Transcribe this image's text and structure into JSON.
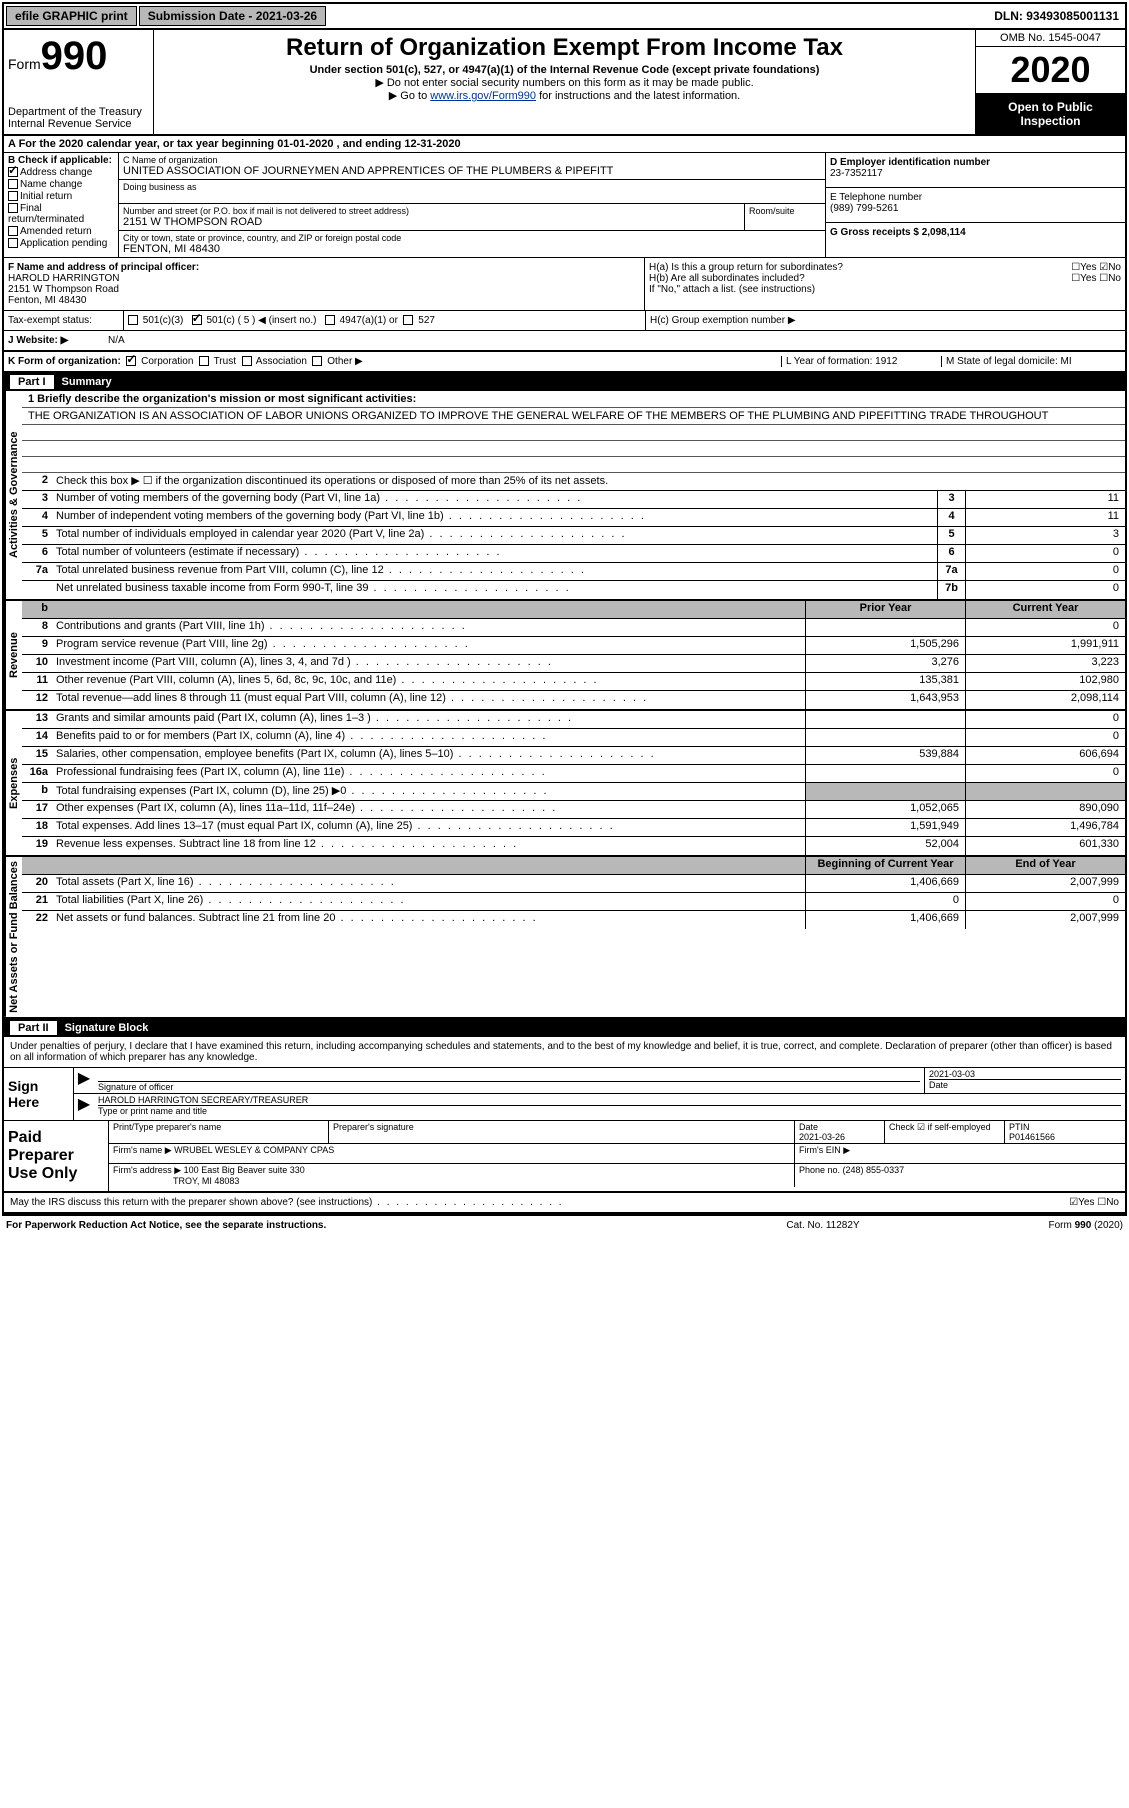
{
  "topbar": {
    "efile": "efile GRAPHIC print",
    "subdate_label": "Submission Date - 2021-03-26",
    "dln": "DLN: 93493085001131"
  },
  "header": {
    "form_prefix": "Form",
    "form_no": "990",
    "dept": "Department of the Treasury Internal Revenue Service",
    "title": "Return of Organization Exempt From Income Tax",
    "sub1": "Under section 501(c), 527, or 4947(a)(1) of the Internal Revenue Code (except private foundations)",
    "sub2a": "▶ Do not enter social security numbers on this form as it may be made public.",
    "sub2b_pre": "▶ Go to ",
    "sub2b_link": "www.irs.gov/Form990",
    "sub2b_post": " for instructions and the latest information.",
    "omb": "OMB No. 1545-0047",
    "year": "2020",
    "inspect": "Open to Public Inspection"
  },
  "taxyear": "A For the 2020 calendar year, or tax year beginning 01-01-2020    , and ending 12-31-2020",
  "checkb": {
    "label": "B Check if applicable:",
    "addr": "Address change",
    "name": "Name change",
    "initial": "Initial return",
    "final": "Final return/terminated",
    "amended": "Amended return",
    "app": "Application pending"
  },
  "entity": {
    "name_label": "C Name of organization",
    "name": "UNITED ASSOCIATION OF JOURNEYMEN AND APPRENTICES OF THE PLUMBERS & PIPEFITT",
    "dba_label": "Doing business as",
    "dba": "",
    "addr_label": "Number and street (or P.O. box if mail is not delivered to street address)",
    "room_label": "Room/suite",
    "addr": "2151 W THOMPSON ROAD",
    "city_label": "City or town, state or province, country, and ZIP or foreign postal code",
    "city": "FENTON, MI  48430",
    "ein_label": "D Employer identification number",
    "ein": "23-7352117",
    "tel_label": "E Telephone number",
    "tel": "(989) 799-5261",
    "gross_label": "G Gross receipts $ 2,098,114"
  },
  "officer": {
    "label": "F  Name and address of principal officer:",
    "name": "HAROLD HARRINGTON",
    "addr1": "2151 W Thompson Road",
    "addr2": "Fenton, MI  48430"
  },
  "groupH": {
    "ha": "H(a)  Is this a group return for subordinates?",
    "ha_ans": "☐Yes ☑No",
    "hb": "H(b)  Are all subordinates included?",
    "hb_ans": "☐Yes ☐No",
    "hb_note": "If \"No,\" attach a list. (see instructions)",
    "hc": "H(c)  Group exemption number ▶"
  },
  "status": {
    "label": "Tax-exempt status:",
    "c3": "501(c)(3)",
    "c": "501(c) ( 5 ) ◀ (insert no.)",
    "a1": "4947(a)(1) or",
    "527": "527"
  },
  "website": {
    "label": "J Website: ▶",
    "value": "N/A"
  },
  "korg": {
    "label": "K Form of organization:",
    "corp": "Corporation",
    "trust": "Trust",
    "assoc": "Association",
    "other": "Other ▶",
    "year_label": "L Year of formation: 1912",
    "state_label": "M State of legal domicile: MI"
  },
  "part1": {
    "num": "Part I",
    "title": "Summary"
  },
  "mission": {
    "line1_label": "1 Briefly describe the organization's mission or most significant activities:",
    "text": "THE ORGANIZATION IS AN ASSOCIATION OF LABOR UNIONS ORGANIZED TO IMPROVE THE GENERAL WELFARE OF THE MEMBERS OF THE PLUMBING AND PIPEFITTING TRADE THROUGHOUT"
  },
  "sections": {
    "gov": "Activities & Governance",
    "rev": "Revenue",
    "exp": "Expenses",
    "net": "Net Assets or Fund Balances"
  },
  "gov_lines": [
    {
      "num": "2",
      "desc": "Check this box ▶ ☐ if the organization discontinued its operations or disposed of more than 25% of its net assets."
    },
    {
      "num": "3",
      "desc": "Number of voting members of the governing body (Part VI, line 1a)",
      "box": "3",
      "val": "11"
    },
    {
      "num": "4",
      "desc": "Number of independent voting members of the governing body (Part VI, line 1b)",
      "box": "4",
      "val": "11"
    },
    {
      "num": "5",
      "desc": "Total number of individuals employed in calendar year 2020 (Part V, line 2a)",
      "box": "5",
      "val": "3"
    },
    {
      "num": "6",
      "desc": "Total number of volunteers (estimate if necessary)",
      "box": "6",
      "val": "0"
    },
    {
      "num": "7a",
      "desc": "Total unrelated business revenue from Part VIII, column (C), line 12",
      "box": "7a",
      "val": "0"
    },
    {
      "num": "",
      "desc": "Net unrelated business taxable income from Form 990-T, line 39",
      "box": "7b",
      "val": "0"
    }
  ],
  "colheaders": {
    "prior": "Prior Year",
    "current": "Current Year"
  },
  "rev_lines": [
    {
      "num": "8",
      "desc": "Contributions and grants (Part VIII, line 1h)",
      "prior": "",
      "curr": "0"
    },
    {
      "num": "9",
      "desc": "Program service revenue (Part VIII, line 2g)",
      "prior": "1,505,296",
      "curr": "1,991,911"
    },
    {
      "num": "10",
      "desc": "Investment income (Part VIII, column (A), lines 3, 4, and 7d )",
      "prior": "3,276",
      "curr": "3,223"
    },
    {
      "num": "11",
      "desc": "Other revenue (Part VIII, column (A), lines 5, 6d, 8c, 9c, 10c, and 11e)",
      "prior": "135,381",
      "curr": "102,980"
    },
    {
      "num": "12",
      "desc": "Total revenue—add lines 8 through 11 (must equal Part VIII, column (A), line 12)",
      "prior": "1,643,953",
      "curr": "2,098,114"
    }
  ],
  "exp_lines": [
    {
      "num": "13",
      "desc": "Grants and similar amounts paid (Part IX, column (A), lines 1–3 )",
      "prior": "",
      "curr": "0"
    },
    {
      "num": "14",
      "desc": "Benefits paid to or for members (Part IX, column (A), line 4)",
      "prior": "",
      "curr": "0"
    },
    {
      "num": "15",
      "desc": "Salaries, other compensation, employee benefits (Part IX, column (A), lines 5–10)",
      "prior": "539,884",
      "curr": "606,694"
    },
    {
      "num": "16a",
      "desc": "Professional fundraising fees (Part IX, column (A), line 11e)",
      "prior": "",
      "curr": "0"
    },
    {
      "num": "b",
      "desc": "Total fundraising expenses (Part IX, column (D), line 25) ▶0",
      "prior": "shaded",
      "curr": "shaded"
    },
    {
      "num": "17",
      "desc": "Other expenses (Part IX, column (A), lines 11a–11d, 11f–24e)",
      "prior": "1,052,065",
      "curr": "890,090"
    },
    {
      "num": "18",
      "desc": "Total expenses. Add lines 13–17 (must equal Part IX, column (A), line 25)",
      "prior": "1,591,949",
      "curr": "1,496,784"
    },
    {
      "num": "19",
      "desc": "Revenue less expenses. Subtract line 18 from line 12",
      "prior": "52,004",
      "curr": "601,330"
    }
  ],
  "net_headers": {
    "beg": "Beginning of Current Year",
    "end": "End of Year"
  },
  "net_lines": [
    {
      "num": "20",
      "desc": "Total assets (Part X, line 16)",
      "beg": "1,406,669",
      "end": "2,007,999"
    },
    {
      "num": "21",
      "desc": "Total liabilities (Part X, line 26)",
      "beg": "0",
      "end": "0"
    },
    {
      "num": "22",
      "desc": "Net assets or fund balances. Subtract line 21 from line 20",
      "beg": "1,406,669",
      "end": "2,007,999"
    }
  ],
  "part2": {
    "num": "Part II",
    "title": "Signature Block"
  },
  "penalties": "Under penalties of perjury, I declare that I have examined this return, including accompanying schedules and statements, and to the best of my knowledge and belief, it is true, correct, and complete. Declaration of preparer (other than officer) is based on all information of which preparer has any knowledge.",
  "sign": {
    "label": "Sign Here",
    "sig_label": "Signature of officer",
    "date_label": "Date",
    "date": "2021-03-03",
    "name": "HAROLD HARRINGTON SECREARY/TREASURER",
    "name_label": "Type or print name and title"
  },
  "prep": {
    "label": "Paid Preparer Use Only",
    "name_label": "Print/Type preparer's name",
    "sig_label": "Preparer's signature",
    "date_label": "Date",
    "date": "2021-03-26",
    "check_label": "Check ☑ if self-employed",
    "ptin_label": "PTIN",
    "ptin": "P01461566",
    "firm_label": "Firm's name    ▶",
    "firm": "WRUBEL WESLEY & COMPANY CPAS",
    "ein_label": "Firm's EIN ▶",
    "addr_label": "Firm's address ▶",
    "addr1": "100 East Big Beaver suite 330",
    "addr2": "TROY, MI  48083",
    "phone_label": "Phone no. (248) 855-0337"
  },
  "discuss": {
    "text": "May the IRS discuss this return with the preparer shown above? (see instructions)",
    "ans": "☑Yes ☐No"
  },
  "footer": {
    "left": "For Paperwork Reduction Act Notice, see the separate instructions.",
    "center": "Cat. No. 11282Y",
    "right": "Form 990 (2020)"
  }
}
